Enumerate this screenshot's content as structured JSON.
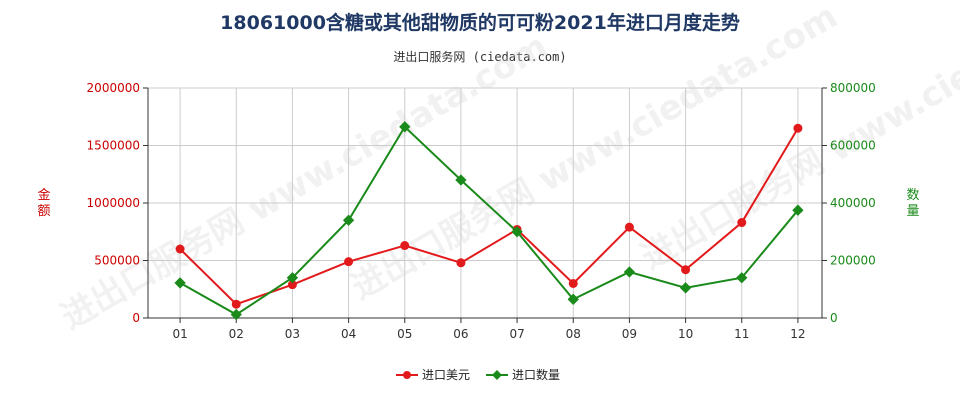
{
  "title": "18061000含糖或其他甜物质的可可粉2021年进口月度走势",
  "subtitle": "进出口服务网 (ciedata.com)",
  "watermark": "进出口服务网 www.ciedata.com",
  "colors": {
    "series1": "#e31a1c",
    "series2": "#1a8a1a",
    "grid": "#cccccc",
    "left_axis": "#cc0000",
    "right_axis": "#1a8a1a"
  },
  "chart_data": {
    "type": "line",
    "categories": [
      "01",
      "02",
      "03",
      "04",
      "05",
      "06",
      "07",
      "08",
      "09",
      "10",
      "11",
      "12"
    ],
    "left_axis": {
      "label": "金额",
      "ylim": [
        0,
        2000000
      ],
      "ticks": [
        "0",
        "500000",
        "1000000",
        "1500000",
        "2000000"
      ]
    },
    "right_axis": {
      "label": "数量",
      "ylim": [
        0,
        800000
      ],
      "ticks": [
        "0",
        "200000",
        "400000",
        "600000",
        "800000"
      ]
    },
    "grid": true,
    "legend_position": "bottom",
    "series": [
      {
        "name": "进口美元",
        "axis": "left",
        "values": [
          600000,
          120000,
          290000,
          490000,
          630000,
          480000,
          770000,
          300000,
          790000,
          420000,
          830000,
          1650000
        ]
      },
      {
        "name": "进口数量",
        "axis": "right",
        "values": [
          122000,
          12000,
          140000,
          340000,
          665000,
          480000,
          300000,
          65000,
          160000,
          105000,
          140000,
          375000
        ]
      }
    ]
  }
}
